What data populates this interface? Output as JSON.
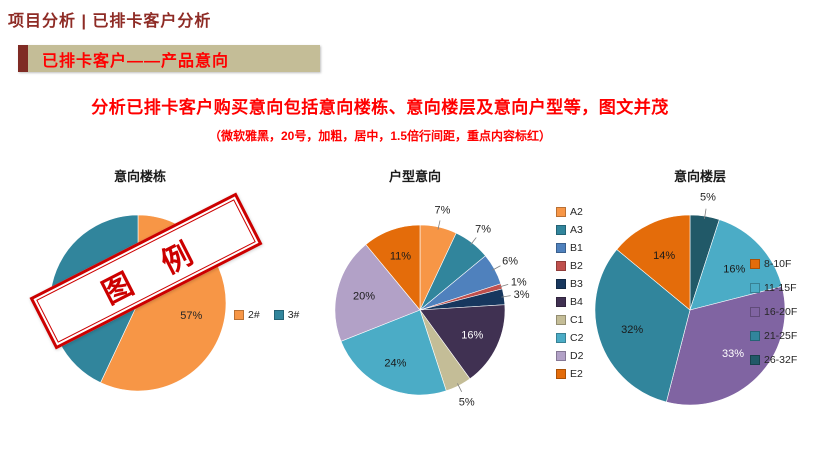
{
  "header": {
    "title": "项目分析 | 已排卡客户分析"
  },
  "banner": {
    "label": "已排卡客户——产品意向",
    "bg": "#C4BD97",
    "accent_color": "#7F2B24",
    "text_color": "#FF0000"
  },
  "heading": {
    "line1": "分析已排卡客户购买意向包括意向楼栋、意向楼层及意向户型等，图文并茂",
    "line2": "（微软雅黑，20号，加粗，居中，1.5倍行间距，重点内容标红）",
    "color": "#FF0000"
  },
  "stamp": {
    "text": "图 例",
    "color": "#CC0000"
  },
  "chart_data": [
    {
      "type": "pie",
      "title": "意向楼栋",
      "legend_position": "right",
      "start_angle": 0,
      "label_r_in": 0.62,
      "slices": [
        {
          "name": "2#",
          "value": 57,
          "color": "#F79646",
          "label": "57%",
          "label_placement": "in",
          "label_color": "#262626"
        },
        {
          "name": "3#",
          "value": 43,
          "color": "#31859C",
          "label": "43%",
          "label_placement": "in",
          "label_color": "#1a1a1a"
        }
      ]
    },
    {
      "type": "pie",
      "title": "户型意向",
      "legend_position": "right",
      "start_angle": 0,
      "label_r_in": 0.68,
      "slices": [
        {
          "name": "A2",
          "value": 7,
          "color": "#F79646",
          "label": "7%",
          "label_placement": "out",
          "label_color": "#262626"
        },
        {
          "name": "A3",
          "value": 7,
          "color": "#31859C",
          "label": "7%",
          "label_placement": "out",
          "label_color": "#262626"
        },
        {
          "name": "B1",
          "value": 6,
          "color": "#4F81BD",
          "label": "6%",
          "label_placement": "out",
          "label_color": "#262626"
        },
        {
          "name": "B2",
          "value": 1,
          "color": "#C0504D",
          "label": "1%",
          "label_placement": "out",
          "label_color": "#262626"
        },
        {
          "name": "B3",
          "value": 3,
          "color": "#17375E",
          "label": "3%",
          "label_placement": "out",
          "label_color": "#262626"
        },
        {
          "name": "B4",
          "value": 16,
          "color": "#403152",
          "label": "16%",
          "label_placement": "in",
          "label_color": "#FFFFFF"
        },
        {
          "name": "C1",
          "value": 5,
          "color": "#C4BD97",
          "label": "5%",
          "label_placement": "out",
          "label_color": "#262626"
        },
        {
          "name": "C2",
          "value": 24,
          "color": "#4BACC6",
          "label": "24%",
          "label_placement": "in",
          "label_color": "#1a1a1a"
        },
        {
          "name": "D2",
          "value": 20,
          "color": "#B2A1C7",
          "label": "20%",
          "label_placement": "in",
          "label_color": "#1a1a1a"
        },
        {
          "name": "E2",
          "value": 11,
          "color": "#E46C0A",
          "label": "11%",
          "label_placement": "in",
          "label_color": "#1a1a1a"
        }
      ]
    },
    {
      "type": "pie",
      "title": "意向楼层",
      "legend_position": "right",
      "start_angle": 0,
      "label_r_in": 0.64,
      "draw_order": [
        4,
        1,
        2,
        3,
        0
      ],
      "slices": [
        {
          "name": "8-10F",
          "value": 14,
          "color": "#E46C0A",
          "label": "14%",
          "label_placement": "in",
          "label_color": "#1a1a1a"
        },
        {
          "name": "11-15F",
          "value": 16,
          "color": "#4BACC6",
          "label": "16%",
          "label_placement": "in",
          "label_color": "#1a1a1a"
        },
        {
          "name": "16-20F",
          "value": 33,
          "color": "#8064A2",
          "label": "33%",
          "label_placement": "in",
          "label_color": "#FFFFFF"
        },
        {
          "name": "21-25F",
          "value": 32,
          "color": "#31859C",
          "label": "32%",
          "label_placement": "in",
          "label_color": "#1a1a1a"
        },
        {
          "name": "26-32F",
          "value": 5,
          "color": "#215968",
          "label": "5%",
          "label_placement": "out",
          "label_color": "#262626"
        }
      ]
    }
  ]
}
